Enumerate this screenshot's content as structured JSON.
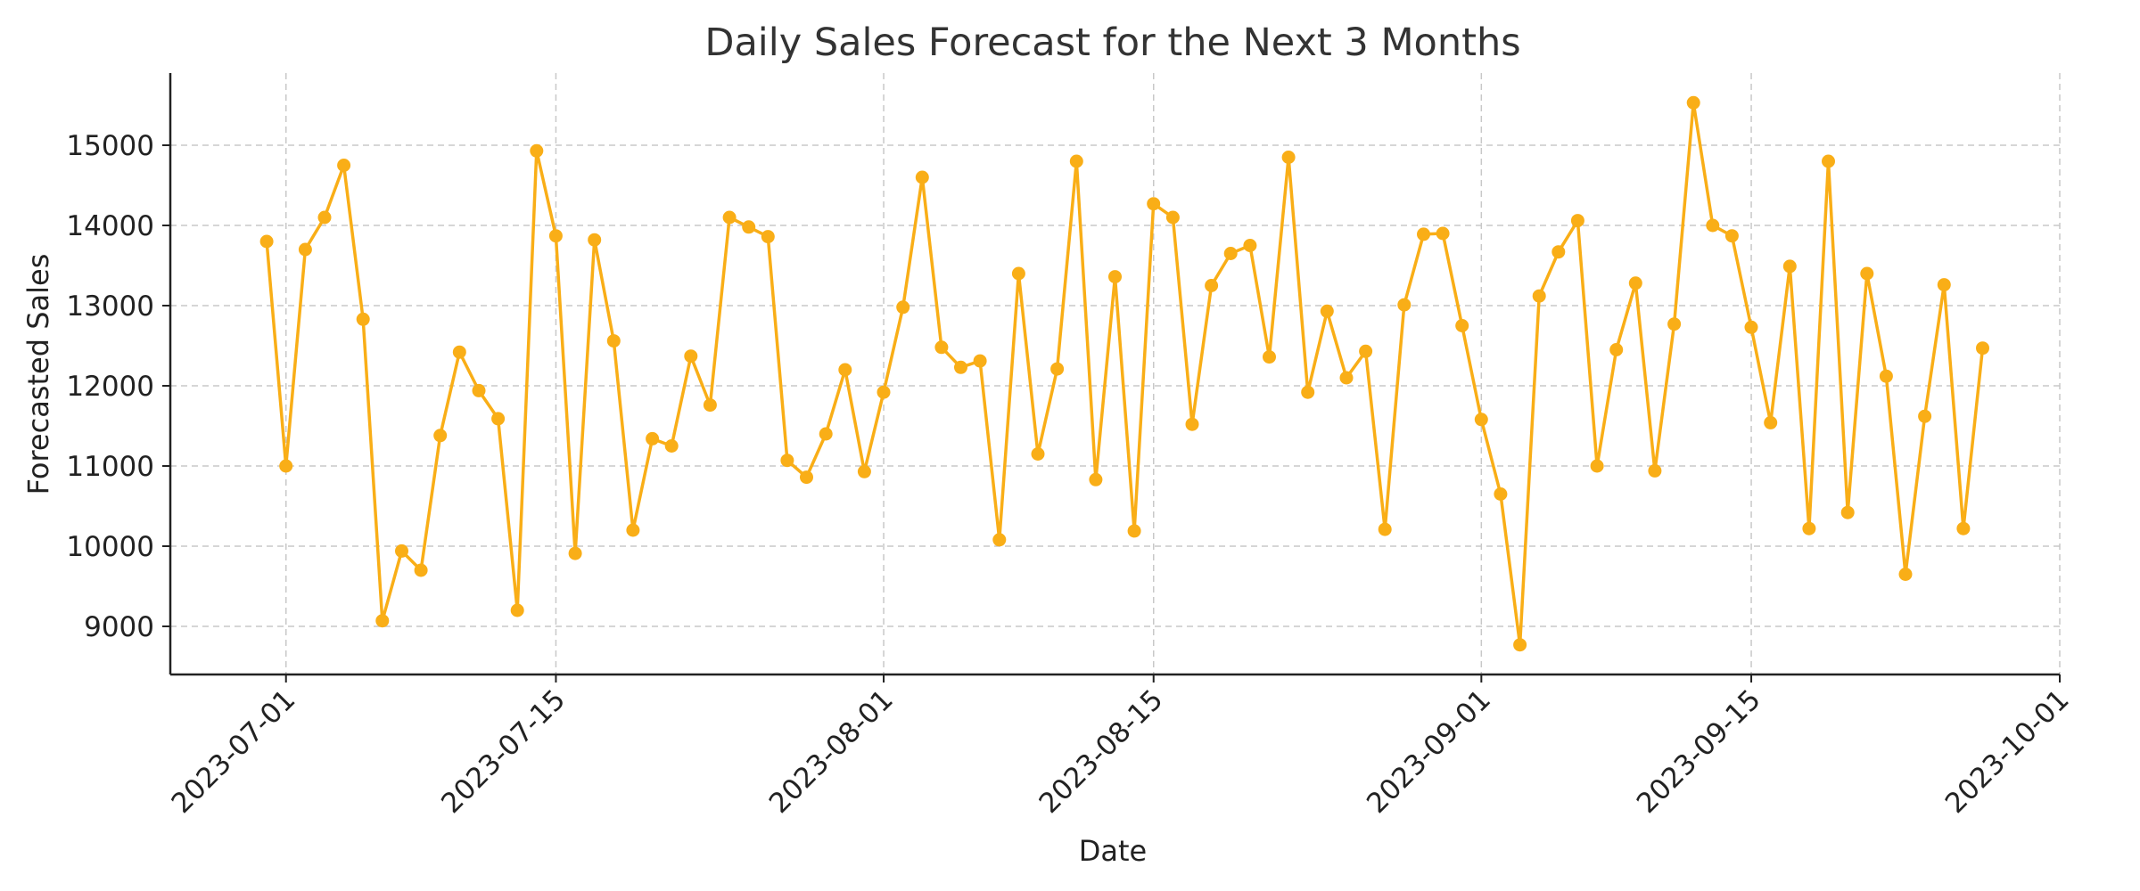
{
  "chart_data": {
    "type": "line",
    "title": "Daily Sales Forecast for the Next 3 Months",
    "xlabel": "Date",
    "ylabel": "Forecasted Sales",
    "xlim": [
      "2023-06-25",
      "2023-10-01"
    ],
    "ylim": [
      8400,
      15900
    ],
    "x_ticks": [
      "2023-07-01",
      "2023-07-15",
      "2023-08-01",
      "2023-08-15",
      "2023-09-01",
      "2023-09-15",
      "2023-10-01"
    ],
    "y_ticks": [
      9000,
      10000,
      11000,
      12000,
      13000,
      14000,
      15000
    ],
    "grid": true,
    "legend": "none",
    "color": "#F9AE17",
    "start_date": "2023-06-30",
    "series": [
      {
        "values": [
          13800,
          11000,
          13700,
          14100,
          14750,
          12830,
          9070,
          9940,
          9700,
          11380,
          12420,
          11940,
          11590,
          9200,
          14930,
          13870,
          9910,
          13820,
          12560,
          10200,
          11340,
          11250,
          12370,
          11760,
          14100,
          13980,
          13860,
          11070,
          10860,
          11400,
          12200,
          10930,
          11920,
          12980,
          14600,
          12480,
          12230,
          12310,
          10080,
          13400,
          11150,
          12210,
          14800,
          10830,
          13360,
          10190,
          14270,
          14100,
          11520,
          13250,
          13650,
          13750,
          12360,
          14850,
          11920,
          12930,
          12100,
          12430,
          10210,
          13010,
          13890,
          13900,
          12750,
          11580,
          10650,
          8770,
          13120,
          13670,
          14060,
          11000,
          12450,
          13280,
          10940,
          12770,
          15530,
          14000,
          13870,
          12730,
          11540,
          13490,
          10220,
          14800,
          10420,
          13400,
          12120,
          9650,
          11620,
          13260,
          10220,
          12470
        ]
      }
    ]
  }
}
